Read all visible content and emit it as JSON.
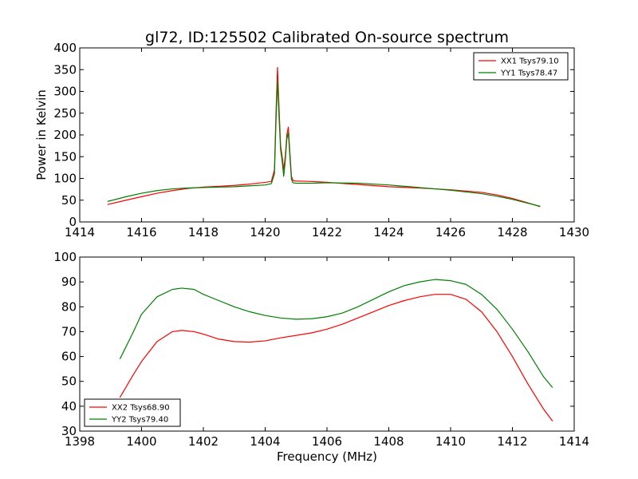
{
  "title": "gl72, ID:125502 Calibrated On-source spectrum",
  "colors": {
    "red": "#ff0000",
    "green": "#008000"
  },
  "chart_data": [
    {
      "type": "line",
      "title": "gl72, ID:125502 Calibrated On-source spectrum",
      "xlabel": "",
      "ylabel": "Power in Kelvin",
      "xlim": [
        1414,
        1430
      ],
      "ylim": [
        0,
        400
      ],
      "xticks": [
        1414,
        1416,
        1418,
        1420,
        1422,
        1424,
        1426,
        1428,
        1430
      ],
      "yticks": [
        0,
        50,
        100,
        150,
        200,
        250,
        300,
        350,
        400
      ],
      "legend_position": "top-right",
      "series": [
        {
          "name": "XX1 Tsys79.10",
          "color": "#ff0000",
          "x": [
            1414.9,
            1415.5,
            1416,
            1416.5,
            1417,
            1417.5,
            1418,
            1418.5,
            1419,
            1419.5,
            1420,
            1420.2,
            1420.3,
            1420.35,
            1420.4,
            1420.45,
            1420.5,
            1420.55,
            1420.6,
            1420.65,
            1420.7,
            1420.75,
            1420.8,
            1420.85,
            1420.9,
            1421,
            1421.5,
            1422,
            1423,
            1424,
            1425,
            1426,
            1427,
            1427.5,
            1428,
            1428.5,
            1428.9
          ],
          "y": [
            40,
            50,
            58,
            66,
            72,
            77,
            80,
            82,
            84,
            87,
            91,
            93,
            120,
            250,
            355,
            260,
            175,
            150,
            120,
            150,
            200,
            218,
            160,
            105,
            95,
            94,
            93,
            91,
            86,
            81,
            78,
            74,
            68,
            62,
            54,
            44,
            35
          ]
        },
        {
          "name": "YY1 Tsys78.47",
          "color": "#008000",
          "x": [
            1414.9,
            1415.5,
            1416,
            1416.5,
            1417,
            1417.5,
            1418,
            1418.5,
            1419,
            1419.5,
            1420,
            1420.2,
            1420.3,
            1420.35,
            1420.4,
            1420.45,
            1420.5,
            1420.55,
            1420.6,
            1420.65,
            1420.7,
            1420.75,
            1420.8,
            1420.85,
            1420.9,
            1421,
            1421.5,
            1422,
            1423,
            1424,
            1425,
            1426,
            1427,
            1427.5,
            1428,
            1428.5,
            1428.9
          ],
          "y": [
            47,
            58,
            66,
            72,
            76,
            78,
            79,
            80,
            81,
            83,
            85,
            88,
            110,
            230,
            325,
            240,
            165,
            140,
            105,
            140,
            190,
            205,
            150,
            98,
            90,
            89,
            89,
            90,
            89,
            85,
            79,
            73,
            65,
            59,
            52,
            43,
            36
          ]
        }
      ]
    },
    {
      "type": "line",
      "title": "",
      "xlabel": "Frequency (MHz)",
      "ylabel": "",
      "xlim": [
        1398,
        1414
      ],
      "ylim": [
        30,
        100
      ],
      "xticks": [
        1398,
        1400,
        1402,
        1404,
        1406,
        1408,
        1410,
        1412,
        1414
      ],
      "yticks": [
        30,
        40,
        50,
        60,
        70,
        80,
        90,
        100
      ],
      "legend_position": "bottom-left",
      "series": [
        {
          "name": "XX2 Tsys68.90",
          "color": "#ff0000",
          "x": [
            1399.3,
            1399.7,
            1400,
            1400.5,
            1401,
            1401.3,
            1401.7,
            1402,
            1402.5,
            1403,
            1403.5,
            1404,
            1404.5,
            1405,
            1405.5,
            1406,
            1406.5,
            1407,
            1407.5,
            1408,
            1408.5,
            1409,
            1409.5,
            1410,
            1410.5,
            1411,
            1411.5,
            1412,
            1412.5,
            1413,
            1413.3
          ],
          "y": [
            43.5,
            52,
            58,
            66,
            70,
            70.5,
            70,
            69,
            67,
            66,
            65.8,
            66.3,
            67.5,
            68.5,
            69.5,
            71,
            73,
            75.5,
            78,
            80.5,
            82.5,
            84,
            85,
            85,
            83,
            78,
            70,
            60,
            49,
            39,
            34
          ]
        },
        {
          "name": "YY2 Tsys79.40",
          "color": "#008000",
          "x": [
            1399.3,
            1399.7,
            1400,
            1400.5,
            1401,
            1401.3,
            1401.7,
            1402,
            1402.5,
            1403,
            1403.5,
            1404,
            1404.5,
            1405,
            1405.5,
            1406,
            1406.5,
            1407,
            1407.5,
            1408,
            1408.5,
            1409,
            1409.5,
            1410,
            1410.5,
            1411,
            1411.5,
            1412,
            1412.5,
            1413,
            1413.3
          ],
          "y": [
            59,
            69,
            77,
            84,
            87,
            87.5,
            87,
            85,
            82.5,
            80,
            78,
            76.5,
            75.5,
            75,
            75.2,
            76,
            77.5,
            80,
            83,
            86,
            88.5,
            90,
            91,
            90.5,
            89,
            85,
            79,
            71,
            62,
            52,
            47.5
          ]
        }
      ]
    }
  ]
}
